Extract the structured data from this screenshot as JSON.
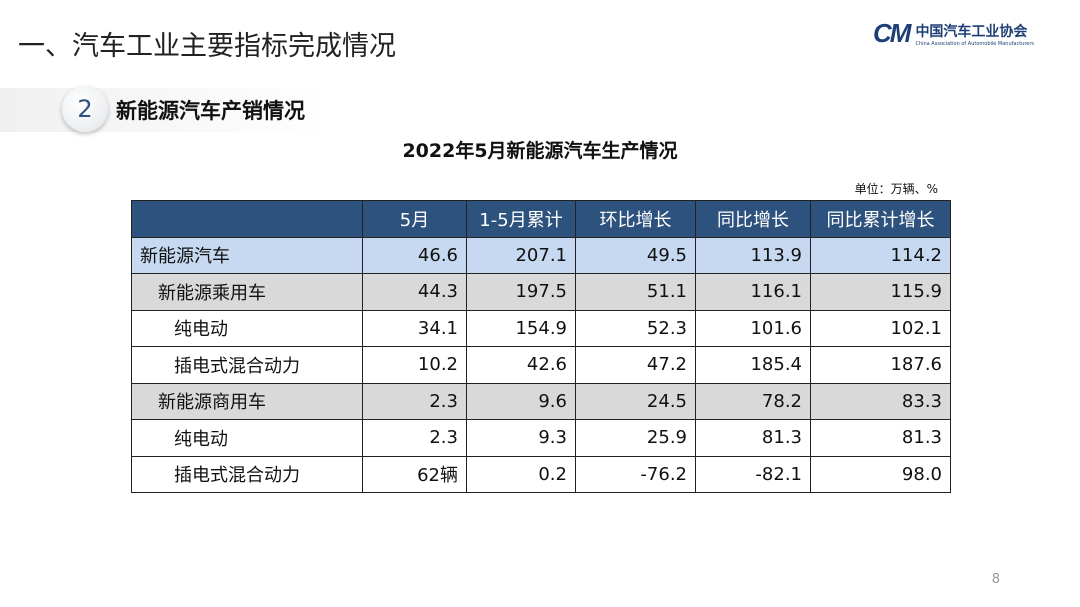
{
  "header": {
    "title": "一、汽车工业主要指标完成情况",
    "logo_cn": "中国汽车工业协会",
    "logo_en": "China Association of Automobile Manufacturers",
    "logo_mark": "CM"
  },
  "section": {
    "number": "2",
    "title": "新能源汽车产销情况"
  },
  "table": {
    "title": "2022年5月新能源汽车生产情况",
    "unit": "单位：万辆、%",
    "columns": [
      "",
      "5月",
      "1-5月累计",
      "环比增长",
      "同比增长",
      "同比累计增长"
    ],
    "rows": [
      {
        "level": 0,
        "cells": [
          "新能源汽车",
          "46.6",
          "207.1",
          "49.5",
          "113.9",
          "114.2"
        ]
      },
      {
        "level": 1,
        "cells": [
          "新能源乘用车",
          "44.3",
          "197.5",
          "51.1",
          "116.1",
          "115.9"
        ]
      },
      {
        "level": 2,
        "cells": [
          "纯电动",
          "34.1",
          "154.9",
          "52.3",
          "101.6",
          "102.1"
        ]
      },
      {
        "level": 2,
        "cells": [
          "插电式混合动力",
          "10.2",
          "42.6",
          "47.2",
          "185.4",
          "187.6"
        ]
      },
      {
        "level": 1,
        "cells": [
          "新能源商用车",
          "2.3",
          "9.6",
          "24.5",
          "78.2",
          "83.3"
        ]
      },
      {
        "level": 2,
        "cells": [
          "纯电动",
          "2.3",
          "9.3",
          "25.9",
          "81.3",
          "81.3"
        ]
      },
      {
        "level": 2,
        "cells": [
          "插电式混合动力",
          "62辆",
          "0.2",
          "-76.2",
          "-82.1",
          "98.0"
        ]
      }
    ]
  },
  "page_number": "8",
  "colors": {
    "header": "#2d527e",
    "total_row": "#c6d9f0",
    "sub_row": "#d9d9d9",
    "brand": "#1d3f75"
  }
}
